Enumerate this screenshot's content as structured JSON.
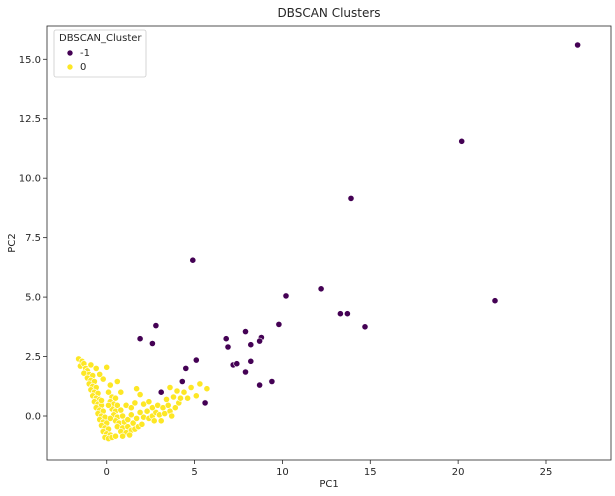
{
  "chart_data": {
    "type": "scatter",
    "title": "DBSCAN Clusters",
    "xlabel": "PC1",
    "ylabel": "PC2",
    "xlim": [
      -3.4,
      28.7
    ],
    "ylim": [
      -1.85,
      16.4
    ],
    "xticks": [
      0,
      5,
      10,
      15,
      20,
      25
    ],
    "xtick_labels": [
      "0",
      "5",
      "10",
      "15",
      "20",
      "25"
    ],
    "yticks": [
      0.0,
      2.5,
      5.0,
      7.5,
      10.0,
      12.5,
      15.0
    ],
    "ytick_labels": [
      "0.0",
      "2.5",
      "5.0",
      "7.5",
      "10.0",
      "12.5",
      "15.0"
    ],
    "grid": false,
    "legend": {
      "title": "DBSCAN_Cluster",
      "placement": "top-left",
      "entries": [
        {
          "label": "-1",
          "color": "#440154"
        },
        {
          "label": "0",
          "color": "#fde725"
        }
      ]
    },
    "series": [
      {
        "name": "-1",
        "color": "#440154",
        "points": [
          [
            26.8,
            15.6
          ],
          [
            20.2,
            11.55
          ],
          [
            13.9,
            9.15
          ],
          [
            4.9,
            6.55
          ],
          [
            22.1,
            4.85
          ],
          [
            10.2,
            5.05
          ],
          [
            12.2,
            5.35
          ],
          [
            13.3,
            4.3
          ],
          [
            13.7,
            4.3
          ],
          [
            14.7,
            3.75
          ],
          [
            9.8,
            3.85
          ],
          [
            2.8,
            3.8
          ],
          [
            1.9,
            3.25
          ],
          [
            2.6,
            3.05
          ],
          [
            6.8,
            3.25
          ],
          [
            6.9,
            2.9
          ],
          [
            7.9,
            3.55
          ],
          [
            8.2,
            3.0
          ],
          [
            8.8,
            3.3
          ],
          [
            8.7,
            3.15
          ],
          [
            5.1,
            2.35
          ],
          [
            4.5,
            2.0
          ],
          [
            7.2,
            2.15
          ],
          [
            7.4,
            2.2
          ],
          [
            8.2,
            2.3
          ],
          [
            7.9,
            1.85
          ],
          [
            4.3,
            1.45
          ],
          [
            8.7,
            1.3
          ],
          [
            9.4,
            1.45
          ],
          [
            3.1,
            1.0
          ],
          [
            5.6,
            0.55
          ]
        ]
      },
      {
        "name": "0",
        "color": "#fde725",
        "points": [
          [
            -1.6,
            2.4
          ],
          [
            -1.4,
            2.3
          ],
          [
            -1.5,
            2.1
          ],
          [
            -1.3,
            2.2
          ],
          [
            -1.2,
            2.0
          ],
          [
            -1.1,
            1.9
          ],
          [
            -1.3,
            1.8
          ],
          [
            -1.0,
            1.75
          ],
          [
            -0.8,
            1.7
          ],
          [
            -1.1,
            1.6
          ],
          [
            -0.9,
            1.5
          ],
          [
            -0.7,
            1.45
          ],
          [
            -1.0,
            1.35
          ],
          [
            -0.8,
            1.25
          ],
          [
            -0.6,
            1.2
          ],
          [
            -0.9,
            1.1
          ],
          [
            -0.7,
            1.0
          ],
          [
            -0.5,
            0.95
          ],
          [
            -0.8,
            0.85
          ],
          [
            -0.6,
            0.75
          ],
          [
            -0.4,
            0.7
          ],
          [
            -0.7,
            0.6
          ],
          [
            -0.5,
            0.5
          ],
          [
            -0.3,
            0.45
          ],
          [
            -0.6,
            0.35
          ],
          [
            -0.4,
            0.25
          ],
          [
            -0.2,
            0.2
          ],
          [
            -0.5,
            0.1
          ],
          [
            -0.3,
            0.0
          ],
          [
            -0.1,
            -0.05
          ],
          [
            -0.4,
            -0.15
          ],
          [
            -0.2,
            -0.25
          ],
          [
            0.0,
            -0.3
          ],
          [
            -0.3,
            -0.4
          ],
          [
            -0.1,
            -0.5
          ],
          [
            0.1,
            -0.55
          ],
          [
            -0.2,
            -0.65
          ],
          [
            0.0,
            -0.75
          ],
          [
            0.2,
            -0.8
          ],
          [
            -0.1,
            -0.9
          ],
          [
            0.1,
            -0.95
          ],
          [
            0.3,
            -0.9
          ],
          [
            0.0,
            2.05
          ],
          [
            -0.2,
            1.55
          ],
          [
            0.2,
            1.3
          ],
          [
            0.1,
            1.0
          ],
          [
            0.3,
            0.8
          ],
          [
            0.5,
            0.75
          ],
          [
            0.2,
            0.6
          ],
          [
            0.4,
            0.5
          ],
          [
            0.6,
            0.45
          ],
          [
            0.3,
            0.3
          ],
          [
            0.5,
            0.2
          ],
          [
            0.8,
            0.25
          ],
          [
            0.4,
            0.05
          ],
          [
            0.6,
            -0.05
          ],
          [
            0.9,
            0.0
          ],
          [
            0.5,
            -0.2
          ],
          [
            0.7,
            -0.3
          ],
          [
            1.0,
            -0.25
          ],
          [
            0.6,
            -0.45
          ],
          [
            0.9,
            -0.5
          ],
          [
            1.2,
            -0.45
          ],
          [
            0.8,
            -0.65
          ],
          [
            1.1,
            -0.7
          ],
          [
            1.4,
            -0.6
          ],
          [
            0.5,
            -0.85
          ],
          [
            0.9,
            -0.85
          ],
          [
            1.3,
            -0.8
          ],
          [
            1.6,
            -0.55
          ],
          [
            1.8,
            -0.45
          ],
          [
            2.0,
            -0.35
          ],
          [
            1.5,
            -0.3
          ],
          [
            1.2,
            -0.15
          ],
          [
            1.7,
            -0.1
          ],
          [
            2.1,
            -0.05
          ],
          [
            2.4,
            -0.1
          ],
          [
            2.6,
            0.0
          ],
          [
            1.9,
            0.15
          ],
          [
            2.3,
            0.2
          ],
          [
            2.8,
            0.15
          ],
          [
            3.0,
            0.05
          ],
          [
            3.3,
            0.1
          ],
          [
            3.6,
            0.2
          ],
          [
            2.6,
            0.35
          ],
          [
            2.9,
            0.45
          ],
          [
            3.2,
            0.35
          ],
          [
            3.5,
            0.45
          ],
          [
            3.9,
            0.35
          ],
          [
            4.1,
            0.55
          ],
          [
            1.1,
            0.45
          ],
          [
            1.4,
            0.35
          ],
          [
            1.6,
            0.55
          ],
          [
            2.1,
            0.5
          ],
          [
            2.4,
            0.6
          ],
          [
            3.4,
            0.7
          ],
          [
            3.8,
            0.8
          ],
          [
            4.2,
            0.75
          ],
          [
            4.6,
            0.75
          ],
          [
            4.4,
            1.0
          ],
          [
            4.8,
            1.2
          ],
          [
            5.3,
            1.35
          ],
          [
            5.7,
            1.15
          ],
          [
            5.1,
            0.85
          ],
          [
            4.0,
            1.05
          ],
          [
            3.6,
            1.2
          ],
          [
            0.8,
            1.0
          ],
          [
            0.6,
            1.45
          ],
          [
            1.7,
            1.15
          ],
          [
            1.9,
            0.9
          ],
          [
            -0.4,
            1.75
          ],
          [
            -0.6,
            2.0
          ],
          [
            -0.9,
            2.15
          ],
          [
            0.1,
            0.45
          ],
          [
            2.7,
            -0.2
          ],
          [
            3.1,
            -0.2
          ],
          [
            1.4,
            0.05
          ],
          [
            0.2,
            -0.1
          ],
          [
            -0.3,
            0.65
          ],
          [
            3.7,
            0.0
          ]
        ]
      }
    ]
  }
}
